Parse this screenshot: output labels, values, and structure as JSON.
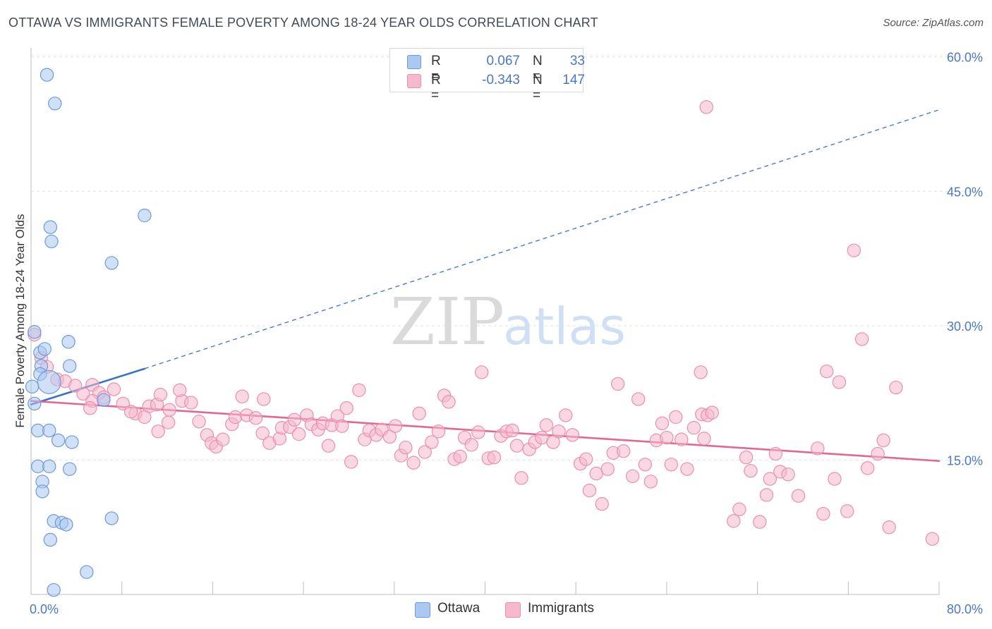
{
  "title": "OTTAWA VS IMMIGRANTS FEMALE POVERTY AMONG 18-24 YEAR OLDS CORRELATION CHART",
  "source": "Source: ZipAtlas.com",
  "watermark": {
    "zip": "ZIP",
    "atlas": "atlas"
  },
  "legend_top": {
    "rows": [
      {
        "r_label": "R =",
        "r_value": "0.067",
        "n_label": "N =",
        "n_value": "33",
        "color": "#aac8f0"
      },
      {
        "r_label": "R =",
        "r_value": "-0.343",
        "n_label": "N =",
        "n_value": "147",
        "color": "#f5b8cc"
      }
    ]
  },
  "legend_bottom": [
    {
      "label": "Ottawa",
      "color": "#aac8f0"
    },
    {
      "label": "Immigrants",
      "color": "#f5b8cc"
    }
  ],
  "chart_data": {
    "type": "scatter",
    "title": "OTTAWA VS IMMIGRANTS FEMALE POVERTY AMONG 18-24 YEAR OLDS CORRELATION CHART",
    "xlabel": "",
    "ylabel": "Female Poverty Among 18-24 Year Olds",
    "xlim": [
      0,
      80
    ],
    "ylim": [
      0,
      61
    ],
    "x_tick_labels": [
      "0.0%",
      "80.0%"
    ],
    "y_ticks": [
      15,
      30,
      45,
      60
    ],
    "y_tick_labels": [
      "15.0%",
      "30.0%",
      "45.0%",
      "60.0%"
    ],
    "grid": true,
    "colors": {
      "ottawa": "#aac8f0",
      "ottawa_line": "#3a72c8",
      "immigrants": "#f5b8cc",
      "immigrants_line": "#e26892"
    },
    "series": [
      {
        "name": "Ottawa",
        "points": [
          [
            1.4,
            58.0
          ],
          [
            2.1,
            54.8
          ],
          [
            10.0,
            42.3
          ],
          [
            1.7,
            41.0
          ],
          [
            1.8,
            39.4
          ],
          [
            7.1,
            37.0
          ],
          [
            0.3,
            29.3
          ],
          [
            0.8,
            27.0
          ],
          [
            1.2,
            27.4
          ],
          [
            3.3,
            28.2
          ],
          [
            0.9,
            25.5
          ],
          [
            0.8,
            24.6
          ],
          [
            3.4,
            25.5
          ],
          [
            1.6,
            23.7
          ],
          [
            0.1,
            23.2
          ],
          [
            0.3,
            21.3
          ],
          [
            6.4,
            21.7
          ],
          [
            0.6,
            18.3
          ],
          [
            1.6,
            18.3
          ],
          [
            2.4,
            17.2
          ],
          [
            3.6,
            17.0
          ],
          [
            0.6,
            14.3
          ],
          [
            1.6,
            14.3
          ],
          [
            3.4,
            14.0
          ],
          [
            1.0,
            12.6
          ],
          [
            1.0,
            11.5
          ],
          [
            2.0,
            8.2
          ],
          [
            2.7,
            8.0
          ],
          [
            3.1,
            7.8
          ],
          [
            7.1,
            8.5
          ],
          [
            1.7,
            6.1
          ],
          [
            4.9,
            2.5
          ],
          [
            2.0,
            0.5
          ]
        ],
        "sizes": [
          20,
          20,
          20,
          20,
          20,
          20,
          20,
          20,
          20,
          20,
          20,
          20,
          20,
          36,
          20,
          20,
          20,
          20,
          20,
          20,
          20,
          20,
          20,
          20,
          20,
          20,
          20,
          20,
          20,
          20,
          20,
          20,
          20
        ]
      },
      {
        "name": "Immigrants",
        "points": [
          [
            59.5,
            54.4
          ],
          [
            72.5,
            38.4
          ],
          [
            73.2,
            28.5
          ],
          [
            0.3,
            29.0
          ],
          [
            0.9,
            26.4
          ],
          [
            1.4,
            25.4
          ],
          [
            2.3,
            24.0
          ],
          [
            3.0,
            23.8
          ],
          [
            3.9,
            23.3
          ],
          [
            5.4,
            23.4
          ],
          [
            6.0,
            22.5
          ],
          [
            7.3,
            22.9
          ],
          [
            4.6,
            22.4
          ],
          [
            5.4,
            21.6
          ],
          [
            6.4,
            22.0
          ],
          [
            5.2,
            20.8
          ],
          [
            8.1,
            21.3
          ],
          [
            9.2,
            20.2
          ],
          [
            10.4,
            21.0
          ],
          [
            11.1,
            21.2
          ],
          [
            8.8,
            20.4
          ],
          [
            10.0,
            19.8
          ],
          [
            11.4,
            22.3
          ],
          [
            12.2,
            20.6
          ],
          [
            13.3,
            21.6
          ],
          [
            14.1,
            21.4
          ],
          [
            13.1,
            22.8
          ],
          [
            12.1,
            19.2
          ],
          [
            11.2,
            18.2
          ],
          [
            14.8,
            19.3
          ],
          [
            15.5,
            17.8
          ],
          [
            15.9,
            16.9
          ],
          [
            16.3,
            16.5
          ],
          [
            16.9,
            17.3
          ],
          [
            17.7,
            19.0
          ],
          [
            18.0,
            19.8
          ],
          [
            18.6,
            22.1
          ],
          [
            19.0,
            20.0
          ],
          [
            19.8,
            19.7
          ],
          [
            20.4,
            18.0
          ],
          [
            20.5,
            21.8
          ],
          [
            21.0,
            16.9
          ],
          [
            21.9,
            17.4
          ],
          [
            22.1,
            18.6
          ],
          [
            22.8,
            18.7
          ],
          [
            23.2,
            19.5
          ],
          [
            23.6,
            17.9
          ],
          [
            24.3,
            20.0
          ],
          [
            24.7,
            19.0
          ],
          [
            25.3,
            18.4
          ],
          [
            25.7,
            19.1
          ],
          [
            26.2,
            16.6
          ],
          [
            26.5,
            18.9
          ],
          [
            27.0,
            19.9
          ],
          [
            27.4,
            18.8
          ],
          [
            27.8,
            20.8
          ],
          [
            28.2,
            14.8
          ],
          [
            28.9,
            22.8
          ],
          [
            29.4,
            17.3
          ],
          [
            29.8,
            18.3
          ],
          [
            30.4,
            17.8
          ],
          [
            30.9,
            18.4
          ],
          [
            31.6,
            17.6
          ],
          [
            32.1,
            18.8
          ],
          [
            32.6,
            15.5
          ],
          [
            33.0,
            16.4
          ],
          [
            33.7,
            14.7
          ],
          [
            34.2,
            20.2
          ],
          [
            34.7,
            15.9
          ],
          [
            35.3,
            17.0
          ],
          [
            35.9,
            18.2
          ],
          [
            36.4,
            22.2
          ],
          [
            36.8,
            21.5
          ],
          [
            37.3,
            15.1
          ],
          [
            37.8,
            15.4
          ],
          [
            38.2,
            17.5
          ],
          [
            38.8,
            16.7
          ],
          [
            39.4,
            18.1
          ],
          [
            39.7,
            24.8
          ],
          [
            40.3,
            15.2
          ],
          [
            40.8,
            15.3
          ],
          [
            41.4,
            17.7
          ],
          [
            41.9,
            18.2
          ],
          [
            42.4,
            18.3
          ],
          [
            42.8,
            16.6
          ],
          [
            43.2,
            13.0
          ],
          [
            43.9,
            16.2
          ],
          [
            44.4,
            17.0
          ],
          [
            45.0,
            17.5
          ],
          [
            45.4,
            18.9
          ],
          [
            46.0,
            17.0
          ],
          [
            46.5,
            18.2
          ],
          [
            47.1,
            20.0
          ],
          [
            47.7,
            17.8
          ],
          [
            48.4,
            14.6
          ],
          [
            48.9,
            15.1
          ],
          [
            49.2,
            11.6
          ],
          [
            49.8,
            13.5
          ],
          [
            50.3,
            10.1
          ],
          [
            50.8,
            14.0
          ],
          [
            51.3,
            15.8
          ],
          [
            51.7,
            23.5
          ],
          [
            52.2,
            16.0
          ],
          [
            53.0,
            13.2
          ],
          [
            53.5,
            21.8
          ],
          [
            54.1,
            14.5
          ],
          [
            54.6,
            12.6
          ],
          [
            55.1,
            17.2
          ],
          [
            55.6,
            19.1
          ],
          [
            56.0,
            17.5
          ],
          [
            56.4,
            14.5
          ],
          [
            56.8,
            19.8
          ],
          [
            57.3,
            17.3
          ],
          [
            57.8,
            14.0
          ],
          [
            58.4,
            18.6
          ],
          [
            59.1,
            20.1
          ],
          [
            59.3,
            17.4
          ],
          [
            59.6,
            20.0
          ],
          [
            60.0,
            20.3
          ],
          [
            59.0,
            24.8
          ],
          [
            61.9,
            8.2
          ],
          [
            62.4,
            9.5
          ],
          [
            63.0,
            15.3
          ],
          [
            63.4,
            13.8
          ],
          [
            64.2,
            8.1
          ],
          [
            64.8,
            11.1
          ],
          [
            65.1,
            12.9
          ],
          [
            65.6,
            15.7
          ],
          [
            66.0,
            13.7
          ],
          [
            66.7,
            13.4
          ],
          [
            67.6,
            11.0
          ],
          [
            69.3,
            16.3
          ],
          [
            69.8,
            9.0
          ],
          [
            70.1,
            24.9
          ],
          [
            70.8,
            12.9
          ],
          [
            71.2,
            23.7
          ],
          [
            71.9,
            9.3
          ],
          [
            73.7,
            14.1
          ],
          [
            74.6,
            15.7
          ],
          [
            75.1,
            17.2
          ],
          [
            75.6,
            7.5
          ],
          [
            76.2,
            23.1
          ],
          [
            79.4,
            6.2
          ]
        ],
        "sizes": [
          20,
          20,
          20,
          20,
          20,
          20,
          20,
          20,
          20,
          20,
          20,
          20,
          20,
          20,
          20,
          20,
          20,
          20,
          20,
          20,
          20,
          20,
          20,
          20,
          20,
          20,
          20,
          20,
          20,
          20,
          20,
          20,
          20,
          20,
          20,
          20,
          20,
          20,
          20,
          20,
          20,
          20,
          20,
          20,
          20,
          20,
          20,
          20,
          20,
          20,
          20,
          20,
          20,
          20,
          20,
          20,
          20,
          20,
          20,
          20,
          20,
          20,
          20,
          20,
          20,
          20,
          20,
          20,
          20,
          20,
          20,
          20,
          20,
          20,
          20,
          20,
          20,
          20,
          20,
          20,
          20,
          20,
          20,
          20,
          20,
          20,
          20,
          20,
          20,
          20,
          20,
          20,
          20,
          20,
          20,
          20,
          20,
          20,
          20,
          20,
          20,
          20,
          20,
          20,
          20,
          20,
          20,
          20,
          20,
          20,
          20,
          20,
          20,
          20,
          20,
          20,
          20,
          20,
          20,
          20,
          20,
          20,
          20,
          20,
          20,
          20,
          20,
          20,
          20,
          20,
          20,
          20,
          20,
          20,
          20,
          20,
          20,
          20,
          20,
          20,
          20,
          20,
          20,
          20,
          20,
          20,
          20
        ]
      }
    ],
    "trendlines": [
      {
        "name": "Ottawa",
        "solid": [
          [
            0,
            21.2
          ],
          [
            10.0,
            25.2
          ]
        ],
        "dashed": [
          [
            10.0,
            25.2
          ],
          [
            80,
            54.1
          ]
        ]
      },
      {
        "name": "Immigrants",
        "solid": [
          [
            0,
            21.6
          ],
          [
            80,
            14.9
          ]
        ]
      }
    ]
  }
}
